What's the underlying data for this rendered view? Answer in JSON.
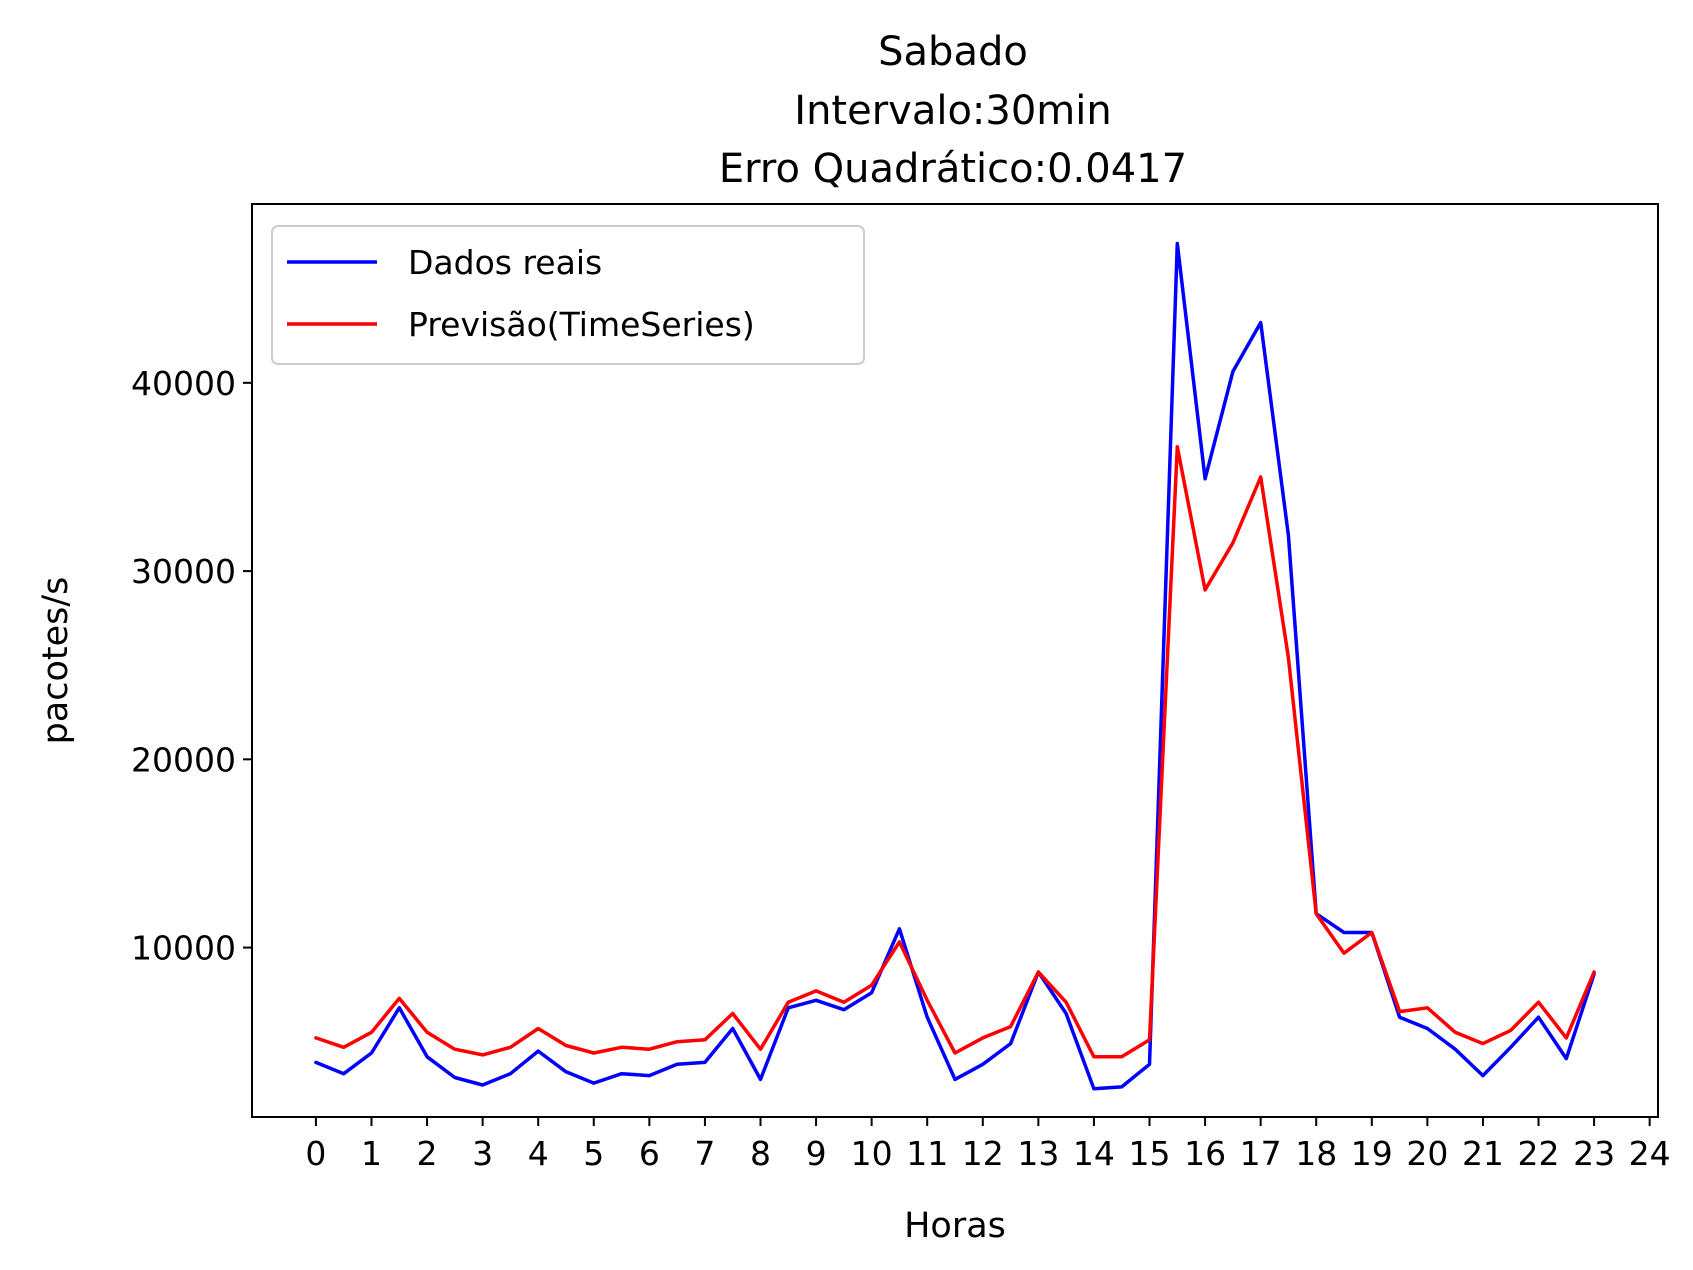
{
  "chart_data": {
    "type": "line",
    "title_lines": [
      "Sabado",
      "Intervalo:30min",
      "Erro Quadrático:0.0417"
    ],
    "xlabel": "Horas",
    "ylabel": "pacotes/s",
    "xlim": [
      -1.15,
      24.15
    ],
    "ylim": [
      1000,
      49500
    ],
    "x_ticks": [
      0,
      1,
      2,
      3,
      4,
      5,
      6,
      7,
      8,
      9,
      10,
      11,
      12,
      13,
      14,
      15,
      16,
      17,
      18,
      19,
      20,
      21,
      22,
      23,
      24
    ],
    "x_tick_labels": [
      "0",
      "1",
      "2",
      "3",
      "4",
      "5",
      "6",
      "7",
      "8",
      "9",
      "10",
      "11",
      "12",
      "13",
      "14",
      "15",
      "16",
      "17",
      "18",
      "19",
      "20",
      "21",
      "22",
      "23",
      "24"
    ],
    "y_ticks": [
      10000,
      20000,
      30000,
      40000
    ],
    "y_tick_labels": [
      "10000",
      "20000",
      "30000",
      "40000"
    ],
    "grid": false,
    "legend_position": "top-left",
    "x": [
      0,
      0.5,
      1,
      1.5,
      2,
      2.5,
      3,
      3.5,
      4,
      4.5,
      5,
      5.5,
      6,
      6.5,
      7,
      7.5,
      8,
      8.5,
      9,
      9.5,
      10,
      10.5,
      11,
      11.5,
      12,
      12.5,
      13,
      13.5,
      14,
      14.5,
      15,
      15.5,
      16,
      16.5,
      17,
      17.5,
      18,
      18.5,
      19,
      19.5,
      20,
      20.5,
      21,
      21.5,
      22,
      22.5,
      23
    ],
    "series": [
      {
        "name": "Dados reais",
        "color": "#0000ff",
        "values": [
          3900,
          3300,
          4400,
          6800,
          4200,
          3100,
          2700,
          3300,
          4500,
          3400,
          2800,
          3300,
          3200,
          3800,
          3900,
          5700,
          3000,
          6800,
          7200,
          6700,
          7600,
          11000,
          6300,
          3000,
          3800,
          4900,
          8700,
          6500,
          2500,
          2600,
          3800,
          47400,
          34900,
          40600,
          43200,
          31900,
          11800,
          10800,
          10800,
          6300,
          5700,
          4600,
          3200,
          4700,
          6300,
          4100,
          8600
        ]
      },
      {
        "name": "Previsão(TimeSeries)",
        "color": "#ff0000",
        "values": [
          5200,
          4700,
          5500,
          7300,
          5500,
          4600,
          4300,
          4700,
          5700,
          4800,
          4400,
          4700,
          4600,
          5000,
          5100,
          6500,
          4600,
          7100,
          7700,
          7100,
          8000,
          10300,
          7200,
          4400,
          5200,
          5800,
          8700,
          7100,
          4200,
          4200,
          5100,
          36600,
          29000,
          31500,
          35000,
          25400,
          11800,
          9700,
          10800,
          6600,
          6800,
          5500,
          4900,
          5600,
          7100,
          5200,
          8700
        ]
      }
    ]
  }
}
